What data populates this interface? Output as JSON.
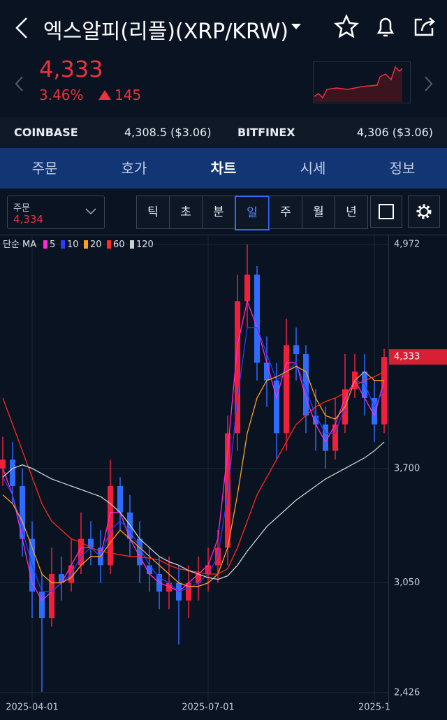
{
  "header": {
    "title": "엑스알피(리플)(XRP/KRW)"
  },
  "price": {
    "current": "4,333",
    "change_pct": "3.46%",
    "change": "145"
  },
  "exchanges": [
    {
      "name": "COINBASE",
      "price": "4,308.5 ($3.06)"
    },
    {
      "name": "BITFINEX",
      "price": "4,306 ($3.06)"
    }
  ],
  "tabs": {
    "items": [
      "주문",
      "호가",
      "차트",
      "시세",
      "정보"
    ],
    "active": 2
  },
  "toolbar": {
    "order_label": "주문",
    "order_price": "4,334",
    "periods": [
      "틱",
      "초",
      "분",
      "일",
      "주",
      "월",
      "년"
    ],
    "active": 3
  },
  "chart_data": {
    "type": "candlestick",
    "legend_prefix": "단순 MA",
    "categories": [
      null,
      null,
      null,
      "2025-04-01",
      null,
      null,
      null,
      null,
      null,
      null,
      null,
      null,
      null,
      null,
      null,
      null,
      null,
      null,
      null,
      null,
      null,
      "2025-07-01",
      null,
      null,
      null,
      null,
      null,
      null,
      null,
      null,
      null,
      null,
      null,
      null,
      null,
      null,
      null,
      null,
      "2025-1",
      null
    ],
    "open": [
      3700,
      3750,
      3600,
      3300,
      3000,
      2850,
      3100,
      3050,
      3150,
      3300,
      3250,
      3150,
      3600,
      3450,
      3300,
      3150,
      3100,
      3000,
      3050,
      2950,
      3050,
      3100,
      3150,
      3250,
      3900,
      4650,
      4800,
      4300,
      4200,
      3900,
      4400,
      4350,
      4000,
      3950,
      3800,
      3950,
      4150,
      4250,
      4100,
      3950
    ],
    "high": [
      3880,
      3850,
      3700,
      3400,
      3100,
      3250,
      3200,
      3300,
      3450,
      3400,
      3350,
      3750,
      3650,
      3550,
      3400,
      3250,
      3200,
      3200,
      3150,
      3150,
      3200,
      3250,
      3350,
      4000,
      4800,
      4972,
      4850,
      4450,
      4300,
      4550,
      4500,
      4400,
      4150,
      4050,
      4100,
      4350,
      4350,
      4350,
      4200,
      4380
    ],
    "low": [
      3600,
      3500,
      3200,
      2850,
      2430,
      2800,
      2950,
      3000,
      3100,
      3150,
      3050,
      3100,
      3350,
      3200,
      3050,
      3000,
      2900,
      2900,
      2700,
      2850,
      2950,
      3000,
      3050,
      3150,
      3800,
      4500,
      4200,
      4050,
      3750,
      3800,
      4200,
      3900,
      3800,
      3700,
      3750,
      3900,
      4100,
      4000,
      3850,
      3900
    ],
    "close": [
      3750,
      3600,
      3300,
      3000,
      2850,
      3100,
      3050,
      3150,
      3300,
      3250,
      3150,
      3600,
      3450,
      3300,
      3150,
      3100,
      3000,
      3050,
      2950,
      3050,
      3100,
      3150,
      3250,
      3900,
      4650,
      4800,
      4300,
      4200,
      3900,
      4400,
      4350,
      4000,
      3950,
      3800,
      3950,
      4150,
      4250,
      4100,
      3950,
      4333
    ],
    "up_color": "#f0203c",
    "down_color": "#2f6bff",
    "series": [
      {
        "name": "5",
        "color": "#ff2bd6",
        "values": [
          3700,
          3550,
          3300,
          3050,
          2950,
          3000,
          3050,
          3150,
          3250,
          3250,
          3200,
          3450,
          3450,
          3300,
          3200,
          3100,
          3050,
          3030,
          3000,
          3050,
          3100,
          3150,
          3300,
          3800,
          4400,
          4650,
          4500,
          4300,
          4100,
          4300,
          4300,
          4100,
          3950,
          3850,
          3950,
          4100,
          4200,
          4100,
          4000,
          4200
        ]
      },
      {
        "name": "10",
        "color": "#2a3cff",
        "values": [
          3650,
          3550,
          3350,
          3150,
          3000,
          3000,
          3050,
          3100,
          3200,
          3250,
          3200,
          3350,
          3400,
          3350,
          3250,
          3150,
          3080,
          3050,
          3000,
          3020,
          3050,
          3100,
          3200,
          3550,
          4100,
          4500,
          4500,
          4350,
          4200,
          4250,
          4300,
          4150,
          4000,
          3900,
          3900,
          4050,
          4200,
          4180,
          4050,
          4150
        ]
      },
      {
        "name": "20",
        "color": "#ffa020",
        "values": [
          3550,
          3500,
          3400,
          3250,
          3100,
          3050,
          3050,
          3080,
          3150,
          3200,
          3200,
          3280,
          3350,
          3300,
          3250,
          3200,
          3150,
          3100,
          3050,
          3030,
          3030,
          3050,
          3100,
          3250,
          3550,
          3900,
          4100,
          4200,
          4220,
          4250,
          4280,
          4250,
          4100,
          4000,
          3980,
          4050,
          4200,
          4250,
          4200,
          4200
        ]
      },
      {
        "name": "60",
        "color": "#ff2a1a",
        "values": [
          4100,
          3950,
          3800,
          3650,
          3500,
          3400,
          3350,
          3300,
          3280,
          3250,
          3230,
          3220,
          3210,
          3200,
          3200,
          3190,
          3180,
          3150,
          3130,
          3120,
          3110,
          3100,
          3100,
          3130,
          3250,
          3400,
          3550,
          3650,
          3750,
          3850,
          3950,
          4000,
          4050,
          4080,
          4100,
          4130,
          4170,
          4200,
          4220,
          4250
        ]
      },
      {
        "name": "120",
        "color": "#d0d0d0",
        "values": [
          3650,
          3700,
          3720,
          3700,
          3670,
          3640,
          3620,
          3600,
          3580,
          3560,
          3540,
          3500,
          3450,
          3380,
          3300,
          3250,
          3200,
          3170,
          3150,
          3120,
          3100,
          3080,
          3070,
          3090,
          3150,
          3230,
          3300,
          3370,
          3420,
          3470,
          3520,
          3560,
          3600,
          3640,
          3670,
          3700,
          3730,
          3760,
          3800,
          3850
        ]
      }
    ],
    "ylim": [
      2394,
      5012
    ],
    "yticks": [
      {
        "value": 4972,
        "label": "4,972"
      },
      {
        "value": 3700,
        "label": "3,700"
      },
      {
        "value": 3050,
        "label": "3,050"
      },
      {
        "value": 2426,
        "label": "2,426"
      }
    ],
    "price_tag": {
      "value": 4333,
      "label": "4,333"
    },
    "grid": true
  }
}
